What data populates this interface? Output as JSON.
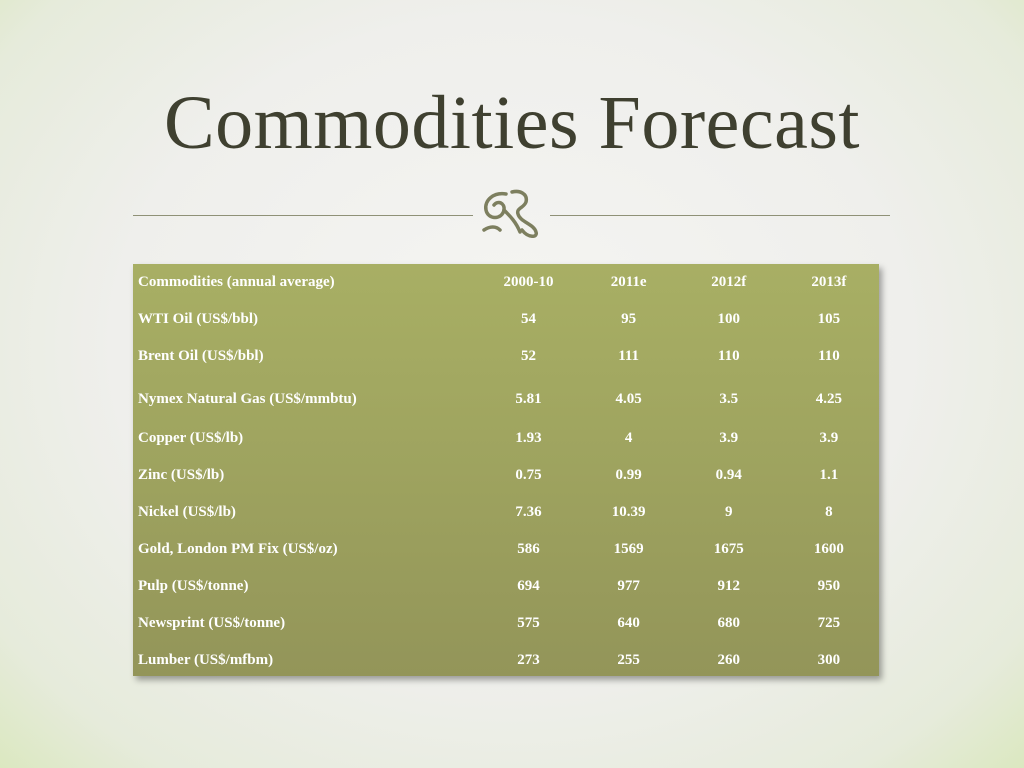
{
  "slide": {
    "title": "Commodities Forecast",
    "accent_color": "#a0a55f",
    "ornament_icon": "floral-ornament-icon"
  },
  "table": {
    "header": [
      "Commodities (annual average)",
      "2000-10",
      "2011e",
      "2012f",
      "2013f"
    ],
    "rows": [
      [
        "WTI Oil (US$/bbl)",
        "54",
        "95",
        "100",
        "105"
      ],
      [
        "Brent Oil (US$/bbl)",
        "52",
        "111",
        "110",
        "110"
      ],
      [
        "Nymex Natural Gas (US$/mmbtu)",
        "5.81",
        "4.05",
        "3.5",
        "4.25"
      ],
      [
        "Copper (US$/lb)",
        "1.93",
        "4",
        "3.9",
        "3.9"
      ],
      [
        "Zinc (US$/lb)",
        "0.75",
        "0.99",
        "0.94",
        "1.1"
      ],
      [
        "Nickel (US$/lb)",
        "7.36",
        "10.39",
        "9",
        "8"
      ],
      [
        "Gold, London PM Fix (US$/oz)",
        "586",
        "1569",
        "1675",
        "1600"
      ],
      [
        "Pulp (US$/tonne)",
        "694",
        "977",
        "912",
        "950"
      ],
      [
        "Newsprint (US$/tonne)",
        "575",
        "640",
        "680",
        "725"
      ],
      [
        "Lumber (US$/mfbm)",
        "273",
        "255",
        "260",
        "300"
      ]
    ]
  }
}
